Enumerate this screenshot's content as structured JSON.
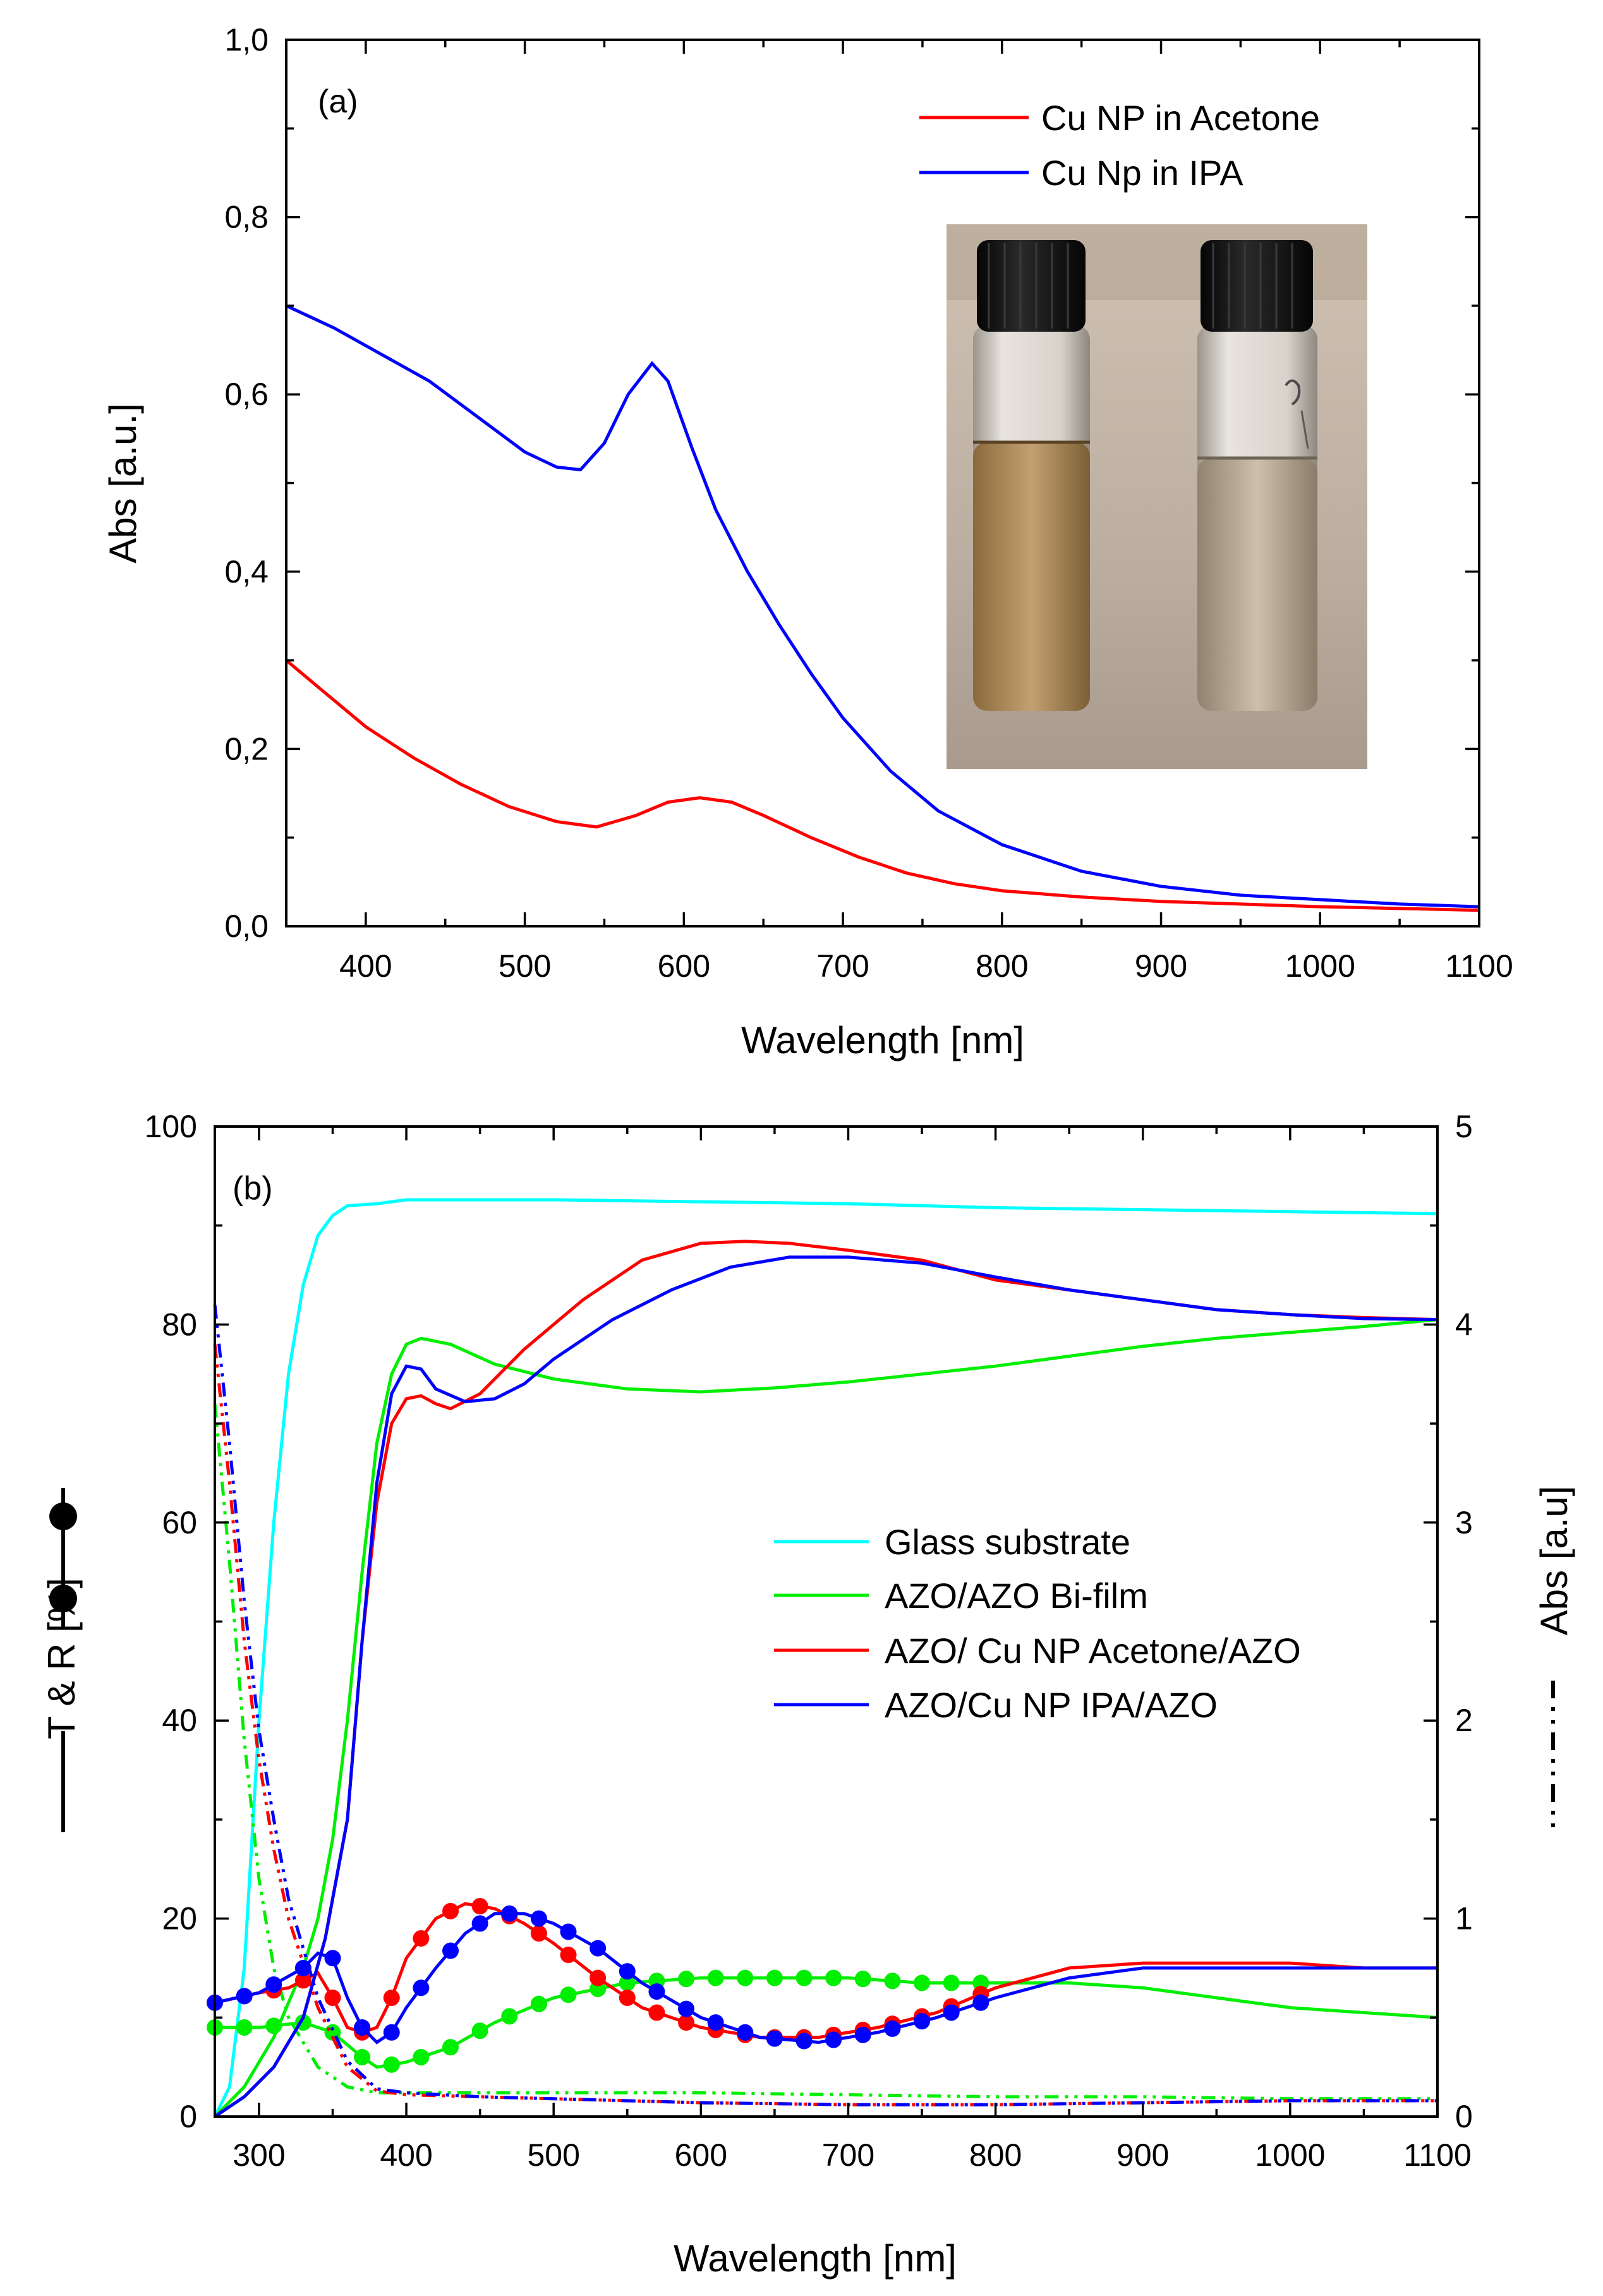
{
  "chart_data": [
    {
      "id": "a",
      "type": "line",
      "panel_label": "(a)",
      "xlabel": "Wavelength [nm]",
      "ylabel": "Abs [a.u.]",
      "xlim": [
        350,
        1100
      ],
      "ylim": [
        0.0,
        1.0
      ],
      "x_ticks": [
        "400",
        "500",
        "600",
        "700",
        "800",
        "900",
        "1000",
        "1100"
      ],
      "y_ticks": [
        "0,0",
        "0,2",
        "0,4",
        "0,6",
        "0,8",
        "1,0"
      ],
      "legend_position": "top-right",
      "series": [
        {
          "name": "Cu NP in Acetone",
          "color": "#ff0000",
          "x": [
            350,
            370,
            400,
            430,
            460,
            490,
            520,
            545,
            570,
            590,
            610,
            630,
            650,
            680,
            710,
            740,
            770,
            800,
            850,
            900,
            950,
            1000,
            1050,
            1100
          ],
          "y": [
            0.3,
            0.27,
            0.225,
            0.19,
            0.16,
            0.135,
            0.118,
            0.112,
            0.125,
            0.14,
            0.145,
            0.14,
            0.125,
            0.1,
            0.078,
            0.06,
            0.048,
            0.04,
            0.033,
            0.028,
            0.025,
            0.022,
            0.02,
            0.018
          ]
        },
        {
          "name": "Cu Np in IPA",
          "color": "#0000ff",
          "x": [
            350,
            380,
            410,
            440,
            470,
            500,
            520,
            535,
            550,
            565,
            580,
            590,
            605,
            620,
            640,
            660,
            680,
            700,
            730,
            760,
            800,
            850,
            900,
            950,
            1000,
            1050,
            1100
          ],
          "y": [
            0.7,
            0.675,
            0.645,
            0.615,
            0.575,
            0.535,
            0.518,
            0.515,
            0.545,
            0.6,
            0.635,
            0.615,
            0.54,
            0.47,
            0.4,
            0.34,
            0.285,
            0.235,
            0.175,
            0.13,
            0.092,
            0.062,
            0.045,
            0.035,
            0.03,
            0.025,
            0.022
          ]
        }
      ]
    },
    {
      "id": "b",
      "type": "line",
      "panel_label": "(b)",
      "xlabel": "Wavelength [nm]",
      "ylabel": "T & R [%]",
      "y2label": "Abs [a.u]",
      "xlim": [
        270,
        1100
      ],
      "ylim": [
        0,
        100
      ],
      "y2lim": [
        0,
        5
      ],
      "x_ticks": [
        "300",
        "400",
        "500",
        "600",
        "700",
        "800",
        "900",
        "1000",
        "1100"
      ],
      "y_ticks": [
        "0",
        "20",
        "40",
        "60",
        "80",
        "100"
      ],
      "y2_ticks": [
        "0",
        "1",
        "2",
        "3",
        "4",
        "5"
      ],
      "legend_position": "center-right",
      "series": [
        {
          "name": "Glass substrate",
          "color": "#00ffff",
          "T": {
            "x": [
              270,
              280,
              290,
              300,
              310,
              320,
              330,
              340,
              350,
              360,
              380,
              400,
              500,
              600,
              700,
              800,
              900,
              1000,
              1100
            ],
            "y": [
              0,
              3,
              15,
              40,
              60,
              75,
              84,
              89,
              91,
              92,
              92.2,
              92.6,
              92.6,
              92.4,
              92.2,
              91.8,
              91.6,
              91.4,
              91.2
            ]
          }
        },
        {
          "name": "AZO/AZO Bi-film",
          "color": "#00ee00",
          "T": {
            "x": [
              270,
              290,
              310,
              330,
              340,
              350,
              360,
              370,
              380,
              390,
              400,
              410,
              430,
              460,
              500,
              550,
              600,
              650,
              700,
              750,
              800,
              850,
              900,
              950,
              1000,
              1050,
              1100
            ],
            "y": [
              0,
              3,
              8,
              15,
              20,
              28,
              40,
              55,
              68,
              75,
              78,
              78.6,
              78,
              76,
              74.5,
              73.5,
              73.2,
              73.6,
              74.2,
              75,
              75.8,
              76.8,
              77.8,
              78.6,
              79.2,
              79.8,
              80.5
            ]
          },
          "R": {
            "x": [
              270,
              300,
              330,
              350,
              370,
              380,
              400,
              430,
              460,
              500,
              550,
              600,
              650,
              700,
              750,
              800,
              850,
              900,
              950,
              1000,
              1050,
              1100
            ],
            "y": [
              9,
              9,
              9.5,
              8.5,
              6,
              5,
              5.5,
              7,
              9.5,
              12,
              13.5,
              14,
              14,
              14,
              13.5,
              13.5,
              13.5,
              13,
              12,
              11,
              10.5,
              10
            ]
          },
          "Abs": {
            "x": [
              270,
              280,
              290,
              300,
              310,
              320,
              340,
              360,
              380,
              400,
              450,
              500,
              600,
              700,
              800,
              900,
              1000,
              1100
            ],
            "y": [
              3.6,
              2.8,
              1.9,
              1.2,
              0.75,
              0.5,
              0.25,
              0.15,
              0.12,
              0.12,
              0.12,
              0.12,
              0.12,
              0.11,
              0.1,
              0.1,
              0.09,
              0.09
            ]
          }
        },
        {
          "name": "AZO/ Cu NP Acetone/AZO",
          "color": "#ff0000",
          "T": {
            "x": [
              270,
              290,
              310,
              330,
              345,
              360,
              370,
              380,
              390,
              400,
              410,
              420,
              430,
              450,
              480,
              520,
              560,
              600,
              630,
              660,
              700,
              750,
              800,
              850,
              900,
              950,
              1000,
              1050,
              1100
            ],
            "y": [
              0,
              2,
              5,
              10,
              18,
              30,
              48,
              62,
              70,
              72.5,
              72.8,
              72,
              71.5,
              73,
              77.5,
              82.5,
              86.5,
              88.2,
              88.4,
              88.2,
              87.5,
              86.5,
              84.5,
              83.5,
              82.5,
              81.5,
              81,
              80.7,
              80.5
            ]
          },
          "R": {
            "x": [
              270,
              300,
              320,
              340,
              350,
              360,
              370,
              380,
              390,
              400,
              420,
              440,
              460,
              480,
              500,
              530,
              560,
              600,
              640,
              680,
              720,
              760,
              800,
              850,
              900,
              950,
              1000,
              1050,
              1100
            ],
            "y": [
              11.5,
              12.5,
              13,
              14.5,
              12,
              9,
              8.5,
              9,
              12,
              16,
              20,
              21.5,
              21,
              19.5,
              17.5,
              14,
              11,
              9,
              8,
              8,
              9,
              10.5,
              13,
              15,
              15.5,
              15.5,
              15.5,
              15,
              15
            ]
          },
          "Abs": {
            "x": [
              270,
              280,
              290,
              300,
              310,
              320,
              340,
              360,
              380,
              400,
              450,
              500,
              600,
              700,
              800,
              900,
              1000,
              1100
            ],
            "y": [
              3.9,
              3.2,
              2.4,
              1.8,
              1.35,
              1.0,
              0.55,
              0.25,
              0.13,
              0.11,
              0.1,
              0.09,
              0.07,
              0.06,
              0.06,
              0.07,
              0.08,
              0.08
            ]
          }
        },
        {
          "name": "AZO/Cu NP  IPA/AZO",
          "color": "#0000ff",
          "T": {
            "x": [
              270,
              290,
              310,
              330,
              345,
              360,
              370,
              380,
              390,
              400,
              410,
              420,
              440,
              460,
              480,
              500,
              540,
              580,
              620,
              660,
              700,
              750,
              800,
              850,
              900,
              950,
              1000,
              1050,
              1100
            ],
            "y": [
              0,
              2,
              5,
              10,
              18,
              30,
              48,
              64,
              73,
              75.8,
              75.5,
              73.5,
              72.2,
              72.5,
              74,
              76.5,
              80.5,
              83.5,
              85.8,
              86.8,
              86.8,
              86.2,
              84.8,
              83.5,
              82.5,
              81.5,
              81,
              80.6,
              80.5
            ]
          },
          "R": {
            "x": [
              270,
              300,
              330,
              340,
              350,
              360,
              370,
              380,
              390,
              400,
              420,
              440,
              460,
              480,
              500,
              530,
              560,
              600,
              640,
              680,
              720,
              760,
              800,
              850,
              900,
              950,
              1000,
              1050,
              1100
            ],
            "y": [
              11.5,
              12.5,
              15,
              16.5,
              16,
              12,
              9,
              7.5,
              8.5,
              11,
              15,
              18.5,
              20.5,
              20.5,
              19.5,
              17,
              13.5,
              10,
              8,
              7.5,
              8.5,
              10,
              12,
              14,
              15,
              15,
              15,
              15,
              15
            ]
          },
          "Abs": {
            "x": [
              270,
              280,
              290,
              300,
              310,
              320,
              340,
              360,
              380,
              400,
              450,
              500,
              600,
              700,
              800,
              900,
              1000,
              1100
            ],
            "y": [
              4.1,
              3.4,
              2.6,
              1.95,
              1.5,
              1.1,
              0.6,
              0.28,
              0.14,
              0.12,
              0.1,
              0.09,
              0.07,
              0.06,
              0.06,
              0.07,
              0.08,
              0.08
            ]
          }
        }
      ]
    }
  ]
}
